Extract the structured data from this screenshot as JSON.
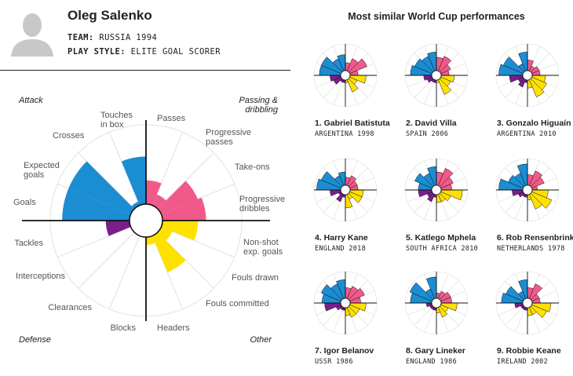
{
  "player": {
    "name": "Oleg Salenko",
    "team_label": "TEAM:",
    "team_value": "RUSSIA 1994",
    "style_label": "PLAY STYLE:",
    "style_value": "ELITE GOAL SCORER"
  },
  "colors": {
    "attack": "#1b8dd3",
    "passing": "#f05a8b",
    "other": "#ffe100",
    "defense": "#7b1e8c",
    "grid": "#e6e6e6",
    "axis": "#111111"
  },
  "chart_data": {
    "type": "polar-bar",
    "quadrants": [
      "Attack",
      "Passing & dribbling",
      "Defense",
      "Other"
    ],
    "categories": [
      "Passes",
      "Progressive passes",
      "Take-ons",
      "Progressive dribbles",
      "Non-shot exp. goals",
      "Fouls drawn",
      "Fouls committed",
      "Headers",
      "Blocks",
      "Clearances",
      "Interceptions",
      "Tackles",
      "Goals",
      "Expected goals",
      "Crosses",
      "Touches in box"
    ],
    "category_groups": [
      "passing",
      "passing",
      "passing",
      "passing",
      "other",
      "other",
      "other",
      "other",
      "defense",
      "defense",
      "defense",
      "defense",
      "attack",
      "attack",
      "attack",
      "attack"
    ],
    "values": [
      0.3,
      0.15,
      0.5,
      0.55,
      0.45,
      0.15,
      0.5,
      0.1,
      0.0,
      0.0,
      0.0,
      0.3,
      0.85,
      0.85,
      0.05,
      0.6
    ],
    "rmax": 1
  },
  "similar": {
    "title": "Most similar World Cup performances",
    "players": [
      {
        "name": "1. Gabriel Batistuta",
        "sub": "ARGENTINA 1998",
        "values": [
          0.3,
          0.5,
          0.7,
          0.3,
          0.6,
          0.3,
          0.5,
          0.1,
          0.1,
          0.1,
          0.3,
          0.4,
          0.8,
          0.8,
          0.5,
          0.6
        ]
      },
      {
        "name": "2. David Villa",
        "sub": "SPAIN 2006",
        "values": [
          0.5,
          0.6,
          0.4,
          0.3,
          0.5,
          0.4,
          0.6,
          0.1,
          0.1,
          0.1,
          0.2,
          0.3,
          0.8,
          0.7,
          0.6,
          0.7
        ]
      },
      {
        "name": "3. Gonzalo Higuaín",
        "sub": "ARGENTINA 2010",
        "values": [
          0.4,
          0.2,
          0.3,
          0.3,
          0.5,
          0.6,
          0.7,
          0.3,
          0.1,
          0.3,
          0.2,
          0.5,
          0.9,
          0.8,
          0.3,
          0.7
        ]
      },
      {
        "name": "4. Harry Kane",
        "sub": "ENGLAND 2018",
        "values": [
          0.3,
          0.4,
          0.3,
          0.3,
          0.5,
          0.5,
          0.2,
          0.5,
          0.1,
          0.3,
          0.1,
          0.4,
          0.9,
          0.8,
          0.4,
          0.5
        ]
      },
      {
        "name": "5. Katlego Mphela",
        "sub": "SOUTH AFRICA 2010",
        "values": [
          0.5,
          0.7,
          0.5,
          0.4,
          0.8,
          0.4,
          0.3,
          0.3,
          0.1,
          0.3,
          0.2,
          0.5,
          0.5,
          0.7,
          0.5,
          0.7
        ]
      },
      {
        "name": "6. Rob Rensenbrink",
        "sub": "NETHERLANDS 1978",
        "values": [
          0.4,
          0.6,
          0.5,
          0.2,
          0.6,
          0.8,
          0.6,
          0.2,
          0.1,
          0.1,
          0.2,
          0.4,
          0.9,
          0.6,
          0.5,
          0.8
        ]
      },
      {
        "name": "7. Igor Belanov",
        "sub": "USSR 1986",
        "values": [
          0.4,
          0.5,
          0.6,
          0.4,
          0.6,
          0.4,
          0.4,
          0.3,
          0.1,
          0.1,
          0.2,
          0.6,
          0.7,
          0.8,
          0.6,
          0.7
        ]
      },
      {
        "name": "8. Gary Lineker",
        "sub": "ENGLAND 1986",
        "values": [
          0.2,
          0.3,
          0.4,
          0.4,
          0.6,
          0.3,
          0.4,
          0.2,
          0.1,
          0.1,
          0.1,
          0.2,
          0.8,
          0.9,
          0.4,
          0.8
        ]
      },
      {
        "name": "9. Robbie Keane",
        "sub": "IRELAND 2002",
        "values": [
          0.4,
          0.6,
          0.3,
          0.3,
          0.7,
          0.6,
          0.3,
          0.3,
          0.1,
          0.1,
          0.1,
          0.3,
          0.8,
          0.7,
          0.3,
          0.7
        ]
      }
    ]
  }
}
